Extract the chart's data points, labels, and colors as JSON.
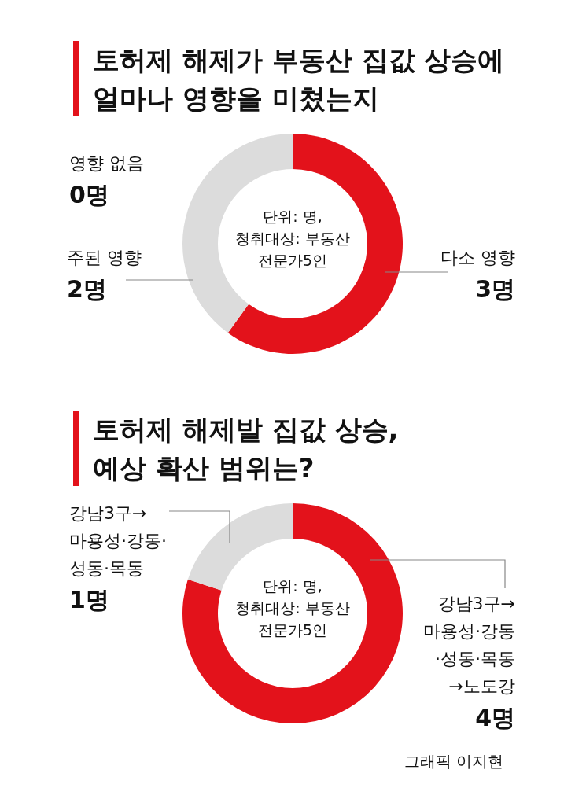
{
  "chart_data": [
    {
      "type": "donut",
      "title": "토허제 해제가 부동산 집값 상승에\n얼마나 영향을 미쳤는지",
      "categories": [
        "다소 영향",
        "주된 영향",
        "영향 없음"
      ],
      "values": [
        3,
        2,
        0
      ],
      "value_labels": [
        "3명",
        "2명",
        "0명"
      ],
      "colors": [
        "#e3121b",
        "#dcdcdc",
        null
      ],
      "annotations": [
        "단위: 명,\n청취대상: 부동산\n전문가5인"
      ]
    },
    {
      "type": "donut",
      "title": "토허제 해제발 집값 상승,\n예상 확산 범위는?",
      "categories": [
        "강남3구→\n마용성·강동\n·성동·목동\n→노도강",
        "강남3구→\n마용성·강동·\n성동·목동"
      ],
      "values": [
        4,
        1
      ],
      "value_labels": [
        "4명",
        "1명"
      ],
      "colors": [
        "#e3121b",
        "#dcdcdc"
      ],
      "annotations": [
        "단위: 명,\n청취대상: 부동산\n전문가5인",
        "그래픽 이지현"
      ]
    }
  ]
}
